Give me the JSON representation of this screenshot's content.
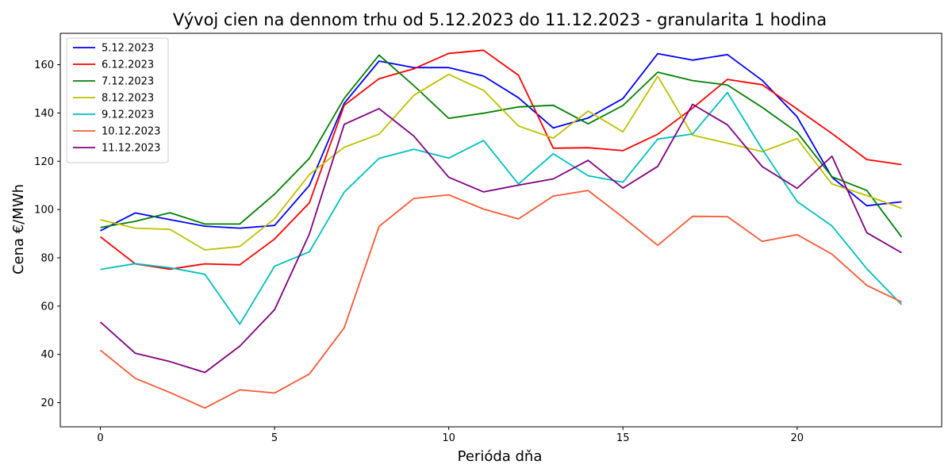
{
  "chart_data": {
    "type": "line",
    "title": "Vývoj cien na dennom trhu od 5.12.2023 do 11.12.2023 - granularita 1 hodina",
    "xlabel": "Perióda dňa",
    "ylabel": "Cena €/MWh",
    "xlim": [
      -1.15,
      24.15
    ],
    "ylim": [
      10,
      173
    ],
    "xticks": [
      0,
      5,
      10,
      15,
      20
    ],
    "yticks": [
      20,
      40,
      60,
      80,
      100,
      120,
      140,
      160
    ],
    "grid": false,
    "legend_position": "top-left",
    "x": [
      0,
      1,
      2,
      3,
      4,
      5,
      6,
      7,
      8,
      9,
      10,
      11,
      12,
      13,
      14,
      15,
      16,
      17,
      18,
      19,
      20,
      21,
      22,
      23
    ],
    "series": [
      {
        "name": "5.12.2023",
        "color": "#0000ff",
        "values": [
          91.2,
          98.6,
          95.8,
          93.1,
          92.3,
          93.4,
          110.0,
          144.0,
          161.5,
          158.8,
          158.8,
          155.3,
          146.3,
          133.8,
          137.9,
          146.0,
          164.6,
          161.9,
          164.2,
          153.5,
          138.4,
          113.4,
          101.6,
          103.2
        ]
      },
      {
        "name": "6.12.2023",
        "color": "#ff0000",
        "values": [
          88.7,
          77.5,
          75.3,
          77.5,
          77.1,
          87.8,
          102.8,
          143.2,
          154.2,
          158.3,
          164.7,
          166.0,
          155.6,
          125.4,
          125.6,
          124.4,
          131.2,
          142.0,
          153.9,
          151.7,
          141.6,
          131.5,
          120.7,
          118.6
        ]
      },
      {
        "name": "7.12.2023",
        "color": "#008000",
        "values": [
          92.6,
          95.1,
          98.7,
          94.0,
          94.0,
          106.4,
          121.2,
          146.1,
          164.0,
          151.3,
          137.8,
          139.9,
          142.5,
          143.2,
          135.5,
          143.1,
          156.9,
          153.4,
          151.6,
          142.3,
          132.0,
          113.6,
          107.9,
          88.6
        ]
      },
      {
        "name": "8.12.2023",
        "color": "#bfbf00",
        "values": [
          95.8,
          92.3,
          91.8,
          83.3,
          84.7,
          96.2,
          114.5,
          125.8,
          131.2,
          147.3,
          156.0,
          149.4,
          134.6,
          129.6,
          140.8,
          132.2,
          155.2,
          130.8,
          127.5,
          124.0,
          129.4,
          110.6,
          105.8,
          100.5
        ]
      },
      {
        "name": "9.12.2023",
        "color": "#00bfbf",
        "values": [
          75.2,
          77.6,
          75.9,
          73.2,
          52.5,
          76.5,
          82.5,
          107.2,
          121.2,
          125.0,
          121.3,
          128.6,
          110.6,
          123.1,
          114.0,
          111.3,
          129.2,
          131.3,
          148.5,
          125.0,
          103.3,
          93.2,
          75.5,
          60.6
        ]
      },
      {
        "name": "10.12.2023",
        "color": "#ff5733",
        "values": [
          41.7,
          30.1,
          24.2,
          17.8,
          25.3,
          24.0,
          31.9,
          51.0,
          93.0,
          104.6,
          106.1,
          100.2,
          96.1,
          105.6,
          107.9,
          96.8,
          85.2,
          97.2,
          97.1,
          86.8,
          89.6,
          81.5,
          68.6,
          61.7
        ]
      },
      {
        "name": "11.12.2023",
        "color": "#800080",
        "values": [
          53.4,
          40.5,
          37.0,
          32.5,
          43.4,
          58.5,
          89.9,
          135.3,
          141.8,
          130.4,
          113.4,
          107.3,
          110.1,
          112.7,
          120.4,
          108.9,
          117.9,
          143.6,
          135.1,
          117.8,
          108.8,
          122.1,
          90.4,
          82.1
        ]
      }
    ]
  }
}
